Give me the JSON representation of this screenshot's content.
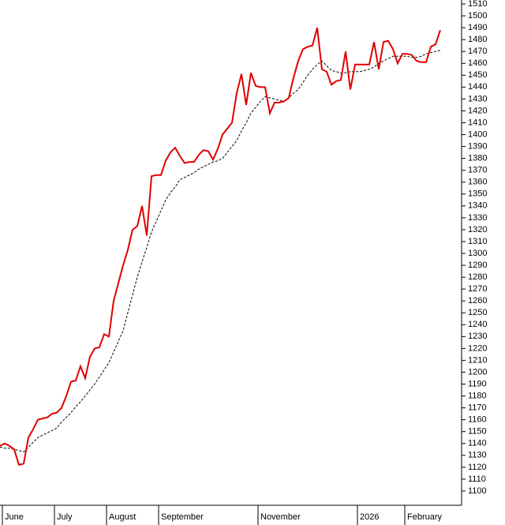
{
  "chart_data": {
    "type": "line",
    "categories": [
      "June",
      null,
      null,
      null,
      null,
      null,
      null,
      null,
      null,
      null,
      null,
      "July",
      null,
      null,
      null,
      null,
      null,
      null,
      null,
      null,
      null,
      null,
      "August",
      null,
      null,
      null,
      null,
      null,
      null,
      null,
      null,
      null,
      null,
      "September",
      null,
      null,
      null,
      null,
      null,
      null,
      null,
      null,
      null,
      null,
      null,
      null,
      null,
      null,
      null,
      null,
      null,
      null,
      null,
      null,
      "November",
      null,
      null,
      null,
      null,
      null,
      null,
      null,
      null,
      null,
      null,
      null,
      null,
      null,
      null,
      null,
      null,
      null,
      null,
      null,
      null,
      "2026",
      null,
      null,
      null,
      null,
      null,
      null,
      null,
      null,
      null,
      "February",
      null,
      null,
      null,
      null,
      null,
      null,
      null,
      null
    ],
    "series": [
      {
        "color": "#e00000",
        "style": "solid",
        "values": [
          1138,
          1140,
          1138,
          1135,
          1122,
          1123,
          1145,
          1152,
          1160,
          1161,
          1162,
          1165,
          1166,
          1170,
          1180,
          1192,
          1193,
          1205,
          1195,
          1213,
          1220,
          1221,
          1232,
          1230,
          1260,
          1275,
          1290,
          1303,
          1320,
          1323,
          1340,
          1315,
          1365,
          1366,
          1366,
          1378,
          1385,
          1389,
          1382,
          1376,
          1377,
          1377,
          1383,
          1387,
          1386,
          1379,
          1388,
          1400,
          1405,
          1410,
          1435,
          1451,
          1425,
          1452,
          1441,
          1440,
          1440,
          1418,
          1427,
          1427,
          1428,
          1431,
          1448,
          1462,
          1472,
          1474,
          1475,
          1490,
          1455,
          1453,
          1442,
          1445,
          1446,
          1470,
          1438,
          1459,
          1459,
          1459,
          1459,
          1478,
          1455,
          1478,
          1479,
          1472,
          1460,
          1468,
          1468,
          1467,
          1462,
          1461,
          1461,
          1474,
          1476,
          1488
        ]
      },
      {
        "color": "#000000",
        "style": "dashed",
        "values": [
          1137,
          1136,
          1136,
          1135,
          1134,
          1133,
          1137,
          1141,
          1145,
          1147,
          1149,
          1151,
          1153,
          1158,
          1162,
          1166,
          1171,
          1175,
          1180,
          1185,
          1190,
          1196,
          1202,
          1208,
          1217,
          1226,
          1235,
          1250,
          1265,
          1280,
          1293,
          1305,
          1318,
          1327,
          1336,
          1345,
          1351,
          1356,
          1362,
          1364,
          1366,
          1368,
          1371,
          1373,
          1375,
          1377,
          1378,
          1380,
          1385,
          1390,
          1395,
          1403,
          1410,
          1418,
          1423,
          1428,
          1432,
          1431,
          1430,
          1429,
          1428,
          1431,
          1435,
          1438,
          1444,
          1450,
          1455,
          1459,
          1462,
          1458,
          1454,
          1453,
          1452,
          1452,
          1453,
          1453,
          1453,
          1454,
          1455,
          1457,
          1460,
          1462,
          1464,
          1466,
          1466,
          1466,
          1466,
          1465,
          1465,
          1466,
          1468,
          1469,
          1470,
          1471
        ]
      }
    ],
    "ylim": [
      1088,
      1512
    ],
    "yticks": [
      1100,
      1110,
      1120,
      1130,
      1140,
      1150,
      1160,
      1170,
      1180,
      1190,
      1200,
      1210,
      1220,
      1230,
      1240,
      1250,
      1260,
      1270,
      1280,
      1290,
      1300,
      1310,
      1320,
      1330,
      1340,
      1350,
      1360,
      1370,
      1380,
      1390,
      1400,
      1410,
      1420,
      1430,
      1440,
      1450,
      1460,
      1470,
      1480,
      1490,
      1500,
      1510
    ]
  }
}
